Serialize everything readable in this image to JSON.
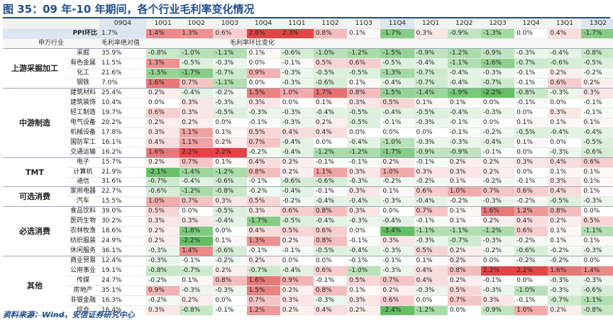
{
  "title": "图 35：09 年-10 年期间，各个行业毛利率变化情况",
  "source": "资料来源：Wind，安信证券研究中心",
  "header": {
    "periods": [
      "09Q4",
      "10Q1",
      "10Q2",
      "10Q3",
      "10Q4",
      "11Q1",
      "11Q2",
      "11Q3",
      "11Q4",
      "12Q1",
      "12Q2",
      "12Q3",
      "12Q4",
      "13Q1",
      "13Q2"
    ],
    "col_industry": "申万行业",
    "col_abs": "毛利率绝对值",
    "col_chg": "毛利率环比变化"
  },
  "ppi": {
    "label": "PPI环比",
    "abs": "1.7%",
    "values": [
      "1.4%",
      "1.3%",
      "0.6%",
      "2.8%",
      "2.3%",
      "0.8%",
      "0.1%",
      "-1.7%",
      "0.3%",
      "-0.9%",
      "-1.3%",
      "0.0%",
      "0.4%",
      "-1.7%"
    ]
  },
  "groups": [
    {
      "name": "上游采掘加工",
      "rows": [
        {
          "ind": "采掘",
          "abs": "35.9%",
          "v": [
            "-0.8%",
            "-1.0%",
            "-1.1%",
            "0.1%",
            "-0.6%",
            "-1.0%",
            "-1.2%",
            "-1.5%",
            "-0.9%",
            "-1.2%",
            "-0.9%",
            "-0.3%",
            "-0.4%",
            "-0.8%"
          ]
        },
        {
          "ind": "有色金属",
          "abs": "11.5%",
          "v": [
            "1.3%",
            "-0.5%",
            "-0.3%",
            "0.0%",
            "-0.1%",
            "0.5%",
            "0.6%",
            "-0.5%",
            "-0.4%",
            "-1.1%",
            "-1.6%",
            "-0.7%",
            "-0.6%",
            "-0.5%"
          ]
        },
        {
          "ind": "化工",
          "abs": "21.6%",
          "v": [
            "-1.5%",
            "-1.7%",
            "-0.7%",
            "0.9%",
            "-0.3%",
            "-0.5%",
            "-0.5%",
            "-1.3%",
            "-0.7%",
            "-0.4%",
            "-0.3%",
            "-0.1%",
            "0.2%",
            "-0.2%"
          ]
        },
        {
          "ind": "钢铁",
          "abs": "7.0%",
          "v": [
            "1.6%",
            "0.7%",
            "-1.1%",
            "0.0%",
            "-0.3%",
            "-0.6%",
            "0.1%",
            "-0.4%",
            "-0.7%",
            "-0.4%",
            "-0.7%",
            "-0.1%",
            "0.6%",
            "0.2%"
          ]
        }
      ]
    },
    {
      "name": "中游制造",
      "rows": [
        {
          "ind": "建筑材料",
          "abs": "25.4%",
          "v": [
            "0.2%",
            "-0.4%",
            "-0.2%",
            "1.5%",
            "1.0%",
            "1.7%",
            "0.8%",
            "-1.5%",
            "-1.4%",
            "-1.9%",
            "-2.2%",
            "-0.8%",
            "-0.3%",
            "0.3%"
          ]
        },
        {
          "ind": "建筑装饰",
          "abs": "10.4%",
          "v": [
            "0.0%",
            "0.3%",
            "-0.3%",
            "0.3%",
            "0.0%",
            "0.1%",
            "0.3%",
            "0.5%",
            "0.1%",
            "0.1%",
            "0.0%",
            "-0.1%",
            "0.0%",
            "-0.1%"
          ]
        },
        {
          "ind": "轻工制造",
          "abs": "19.7%",
          "v": [
            "0.6%",
            "0.3%",
            "-0.5%",
            "-0.3%",
            "-0.3%",
            "-0.4%",
            "-0.5%",
            "-0.4%",
            "-0.5%",
            "-0.4%",
            "-0.3%",
            "0.0%",
            "0.3%",
            "-0.1%"
          ]
        },
        {
          "ind": "电气设备",
          "abs": "20.2%",
          "v": [
            "0.2%",
            "0.2%",
            "0.0%",
            "-0.1%",
            "-0.3%",
            "0.2%",
            "-0.5%",
            "-0.1%",
            "-0.3%",
            "-0.1%",
            "0.0%",
            "0.1%",
            "0.1%",
            "0.1%"
          ]
        },
        {
          "ind": "机械设备",
          "abs": "17.8%",
          "v": [
            "0.3%",
            "1.1%",
            "0.1%",
            "0.5%",
            "0.4%",
            "0.4%",
            "0.0%",
            "0.0%",
            "0.0%",
            "-0.1%",
            "-0.2%",
            "-0.5%",
            "-0.4%",
            "-0.4%"
          ]
        },
        {
          "ind": "国防军工",
          "abs": "16.1%",
          "v": [
            "0.4%",
            "1.1%",
            "0.2%",
            "0.7%",
            "-0.4%",
            "0.0%",
            "-0.4%",
            "-1.0%",
            "-0.3%",
            "-0.3%",
            "-0.4%",
            "0.1%",
            "0.0%",
            "-0.5%"
          ]
        },
        {
          "ind": "交通运输",
          "abs": "16.2%",
          "v": [
            "1.6%",
            "2.2%",
            "2.2%",
            "-0.2%",
            "-0.4%",
            "-1.2%",
            "-1.2%",
            "-1.7%",
            "-0.9%",
            "-0.9%",
            "-0.1%",
            "0.0%",
            "-0.3%",
            "-0.6%"
          ]
        }
      ]
    },
    {
      "name": "TMT",
      "rows": [
        {
          "ind": "电子",
          "abs": "15.7%",
          "v": [
            "0.2%",
            "0.7%",
            "0.1%",
            "0.4%",
            "0.2%",
            "-0.1%",
            "-0.1%",
            "0.2%",
            "-0.1%",
            "0.2%",
            "0.2%",
            "0.3%",
            "0.4%",
            "0.6%"
          ]
        },
        {
          "ind": "计算机",
          "abs": "21.9%",
          "v": [
            "-2.1%",
            "-1.4%",
            "-1.2%",
            "0.8%",
            "0.2%",
            "1.1%",
            "0.3%",
            "1.0%",
            "0.3%",
            "0.3%",
            "0.2%",
            "0.0%",
            "0.1%",
            "0.1%"
          ]
        },
        {
          "ind": "通信",
          "abs": "31.6%",
          "v": [
            "-0.7%",
            "-0.4%",
            "-0.6%",
            "-0.1%",
            "-0.6%",
            "-0.6%",
            "-0.3%",
            "-0.2%",
            "-0.2%",
            "0.1%",
            "-0.2%",
            "-0.1%",
            "0.3%",
            "0.1%"
          ]
        }
      ]
    },
    {
      "name": "可选消费",
      "rows": [
        {
          "ind": "家用电器",
          "abs": "22.7%",
          "v": [
            "-0.6%",
            "-1.2%",
            "-0.8%",
            "-0.2%",
            "-0.4%",
            "-0.1%",
            "0.3%",
            "0.1%",
            "0.6%",
            "1.0%",
            "0.7%",
            "0.6%",
            "0.4%",
            "0.1%"
          ]
        },
        {
          "ind": "汽车",
          "abs": "15.5%",
          "v": [
            "1.0%",
            "0.7%",
            "0.3%",
            "0.5%",
            "-0.2%",
            "-0.4%",
            "-0.4%",
            "-0.3%",
            "-0.4%",
            "-0.2%",
            "-0.3%",
            "-0.2%",
            "-0.5%",
            "-0.3%"
          ]
        }
      ]
    },
    {
      "name": "必选消费",
      "rows": [
        {
          "ind": "食品饮料",
          "abs": "39.0%",
          "v": [
            "0.5%",
            "0.0%",
            "-0.5%",
            "0.3%",
            "0.6%",
            "0.8%",
            "0.3%",
            "0.0%",
            "0.7%",
            "0.1%",
            "1.6%",
            "1.2%",
            "0.8%",
            "0.0%"
          ]
        },
        {
          "ind": "医药生物",
          "abs": "30.2%",
          "v": [
            "0.3%",
            "0.3%",
            "-0.4%",
            "-1.7%",
            "-0.5%",
            "-0.4%",
            "-0.3%",
            "-0.4%",
            "-0.1%",
            "0.1%",
            "0.2%",
            "0.4%",
            "0.2%",
            "0.5%"
          ]
        },
        {
          "ind": "农林牧渔",
          "abs": "18.6%",
          "v": [
            "0.2%",
            "-1.8%",
            "0.0%",
            "0.4%",
            "0.5%",
            "0.6%",
            "0.0%",
            "-3.4%",
            "-1.1%",
            "-1.1%",
            "-1.2%",
            "0.6%",
            "0.1%",
            "-1.1%"
          ]
        },
        {
          "ind": "纺织服装",
          "abs": "24.9%",
          "v": [
            "0.2%",
            "-2.2%",
            "0.1%",
            "1.3%",
            "0.2%",
            "0.8%",
            "-0.1%",
            "0.3%",
            "-0.3%",
            "-0.7%",
            "-0.3%",
            "-0.2%",
            "0.1%",
            "0.1%"
          ]
        },
        {
          "ind": "休闲服务",
          "abs": "36.1%",
          "v": [
            "-0.3%",
            "1.4%",
            "-0.6%",
            "-0.1%",
            "-0.1%",
            "-0.5%",
            "-0.4%",
            "-0.3%",
            "0.5%",
            "0.2%",
            "-0.2%",
            "-0.6%",
            "-0.2%",
            "-0.3%"
          ]
        }
      ]
    },
    {
      "name": "其他",
      "rows": [
        {
          "ind": "商业贸易",
          "abs": "12.4%",
          "v": [
            "-0.3%",
            "-0.1%",
            "-0.2%",
            "0.2%",
            "0.0%",
            "0.0%",
            "-0.1%",
            "-0.1%",
            "0.1%",
            "0.2%",
            "0.0%",
            "-0.2%",
            "-0.2%",
            "0.0%"
          ]
        },
        {
          "ind": "公用事业",
          "abs": "19.1%",
          "v": [
            "-0.8%",
            "-0.7%",
            "0.2%",
            "-0.7%",
            "-0.4%",
            "0.6%",
            "-1.0%",
            "-0.3%",
            "0.4%",
            "0.8%",
            "2.2%",
            "2.2%",
            "1.6%",
            "1.4%"
          ]
        },
        {
          "ind": "传媒",
          "abs": "24.7%",
          "v": [
            "-0.2%",
            "0.1%",
            "0.8%",
            "1.6%",
            "0.9%",
            "-0.1%",
            "0.5%",
            "0.7%",
            "0.4%",
            "0.2%",
            "-0.1%",
            "0.0%",
            "-0.3%",
            "-0.3%"
          ]
        },
        {
          "ind": "房地产",
          "abs": "35.1%",
          "v": [
            "0.9%",
            "-0.3%",
            "-0.3%",
            "1.5%",
            "0.2%",
            "0.8%",
            "0.1%",
            "0.2%",
            "-0.3%",
            "0.5%",
            "-0.3%",
            "-1.0%",
            "-0.3%",
            "-0.6%"
          ]
        },
        {
          "ind": "非银金融",
          "abs": "16.3%",
          "v": [
            "-0.2%",
            "0.2%",
            "0.0%",
            "0.7%",
            "0.3%",
            "-0.3%",
            "0.3%",
            "0.6%",
            "0.0%",
            "0.7%",
            "0.3%",
            "-0.1%",
            "-0.7%",
            "-1.1%"
          ]
        },
        {
          "ind": "综合",
          "abs": "16.4%",
          "v": [
            "0.3%",
            "-0.8%",
            "-0.1%",
            "1.2%",
            "0.2%",
            "0.4%",
            "0.2%",
            "-2.4%",
            "-1.2%",
            "0.0%",
            "-0.9%",
            "1.0%",
            "0.2%",
            "-0.8%"
          ]
        }
      ]
    }
  ]
}
